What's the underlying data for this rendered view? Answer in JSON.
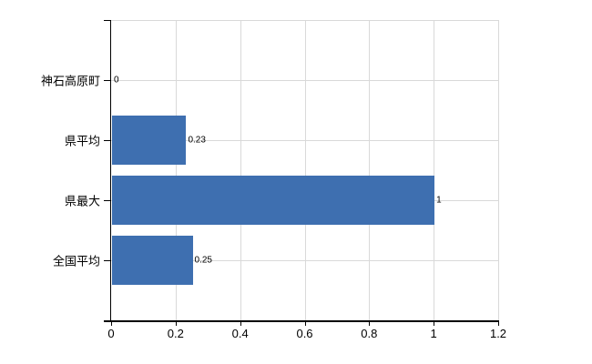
{
  "chart_data": {
    "type": "bar",
    "orientation": "horizontal",
    "title": "",
    "categories": [
      "神石高原町",
      "県平均",
      "県最大",
      "全国平均"
    ],
    "values": [
      0,
      0.23,
      1,
      0.25
    ],
    "value_labels": [
      "0",
      "0.23",
      "1",
      "0.25"
    ],
    "x_ticks": [
      0,
      0.2,
      0.4,
      0.6,
      0.8,
      1,
      1.2
    ],
    "x_tick_labels": [
      "0",
      "0.2",
      "0.4",
      "0.6",
      "0.8",
      "1",
      "1.2"
    ],
    "xlim": [
      0,
      1.2
    ],
    "grid": true,
    "legend": "none",
    "colors": {
      "bar": "#3e6fb0",
      "gridline": "#d9d9d9",
      "axis": "#000000",
      "text": "#000000",
      "background": "#ffffff"
    }
  }
}
